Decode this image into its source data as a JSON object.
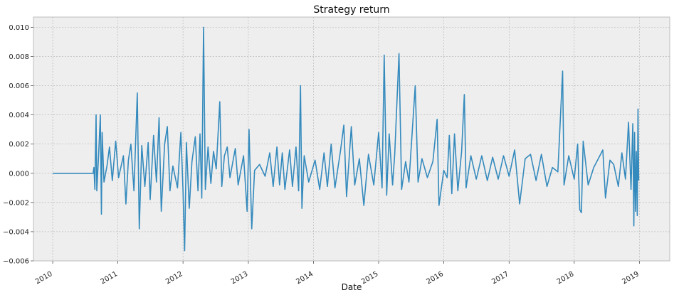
{
  "chart_data": {
    "type": "line",
    "title": "Strategy return",
    "xlabel": "Date",
    "ylabel": "",
    "xlim": [
      "2009-09-15",
      "2019-06-20"
    ],
    "ylim": [
      -0.006,
      0.0107
    ],
    "grid": true,
    "legend": "none",
    "x_ticks": [
      "2010",
      "2011",
      "2012",
      "2013",
      "2014",
      "2015",
      "2016",
      "2017",
      "2018",
      "2019"
    ],
    "y_ticks": [
      "0.010",
      "0.008",
      "0.006",
      "0.004",
      "0.002",
      "0.000",
      "−0.002",
      "−0.004",
      "−0.006"
    ],
    "y_tick_values": [
      0.01,
      0.008,
      0.006,
      0.004,
      0.002,
      0.0,
      -0.002,
      -0.004,
      -0.006
    ],
    "series": [
      {
        "color": "#348abd",
        "points": [
          [
            "2010-01-01",
            0.0
          ],
          [
            "2010-08-15",
            0.0
          ],
          [
            "2010-08-20",
            0.0004
          ],
          [
            "2010-08-25",
            -0.0011
          ],
          [
            "2010-09-01",
            0.004
          ],
          [
            "2010-09-05",
            -0.0012
          ],
          [
            "2010-09-15",
            0.0012
          ],
          [
            "2010-09-25",
            0.004
          ],
          [
            "2010-10-01",
            -0.0028
          ],
          [
            "2010-10-05",
            0.0028
          ],
          [
            "2010-10-15",
            -0.0006
          ],
          [
            "2010-11-01",
            0.0005
          ],
          [
            "2010-11-15",
            0.0018
          ],
          [
            "2010-12-01",
            -0.0005
          ],
          [
            "2010-12-20",
            0.0022
          ],
          [
            "2011-01-05",
            -0.0003
          ],
          [
            "2011-02-01",
            0.0012
          ],
          [
            "2011-02-15",
            -0.0021
          ],
          [
            "2011-03-01",
            0.0009
          ],
          [
            "2011-03-15",
            0.002
          ],
          [
            "2011-04-01",
            -0.0012
          ],
          [
            "2011-04-20",
            0.0055
          ],
          [
            "2011-05-01",
            -0.0038
          ],
          [
            "2011-05-15",
            0.0019
          ],
          [
            "2011-06-01",
            -0.0009
          ],
          [
            "2011-06-20",
            0.0021
          ],
          [
            "2011-07-01",
            -0.0018
          ],
          [
            "2011-07-20",
            0.0026
          ],
          [
            "2011-08-05",
            -0.0006
          ],
          [
            "2011-08-20",
            0.0038
          ],
          [
            "2011-09-01",
            -0.0026
          ],
          [
            "2011-09-20",
            0.002
          ],
          [
            "2011-10-05",
            0.0032
          ],
          [
            "2011-10-20",
            -0.0012
          ],
          [
            "2011-11-05",
            0.0005
          ],
          [
            "2011-12-01",
            -0.001
          ],
          [
            "2011-12-20",
            0.0028
          ],
          [
            "2012-01-01",
            -0.0011
          ],
          [
            "2012-01-10",
            -0.0053
          ],
          [
            "2012-01-20",
            0.0021
          ],
          [
            "2012-02-05",
            -0.0024
          ],
          [
            "2012-02-20",
            0.0008
          ],
          [
            "2012-03-10",
            0.0025
          ],
          [
            "2012-03-25",
            -0.0012
          ],
          [
            "2012-04-05",
            0.0027
          ],
          [
            "2012-04-15",
            -0.0017
          ],
          [
            "2012-04-25",
            0.01
          ],
          [
            "2012-05-05",
            -0.0011
          ],
          [
            "2012-05-20",
            0.0018
          ],
          [
            "2012-06-05",
            -0.0007
          ],
          [
            "2012-06-20",
            0.0015
          ],
          [
            "2012-07-05",
            0.0003
          ],
          [
            "2012-07-25",
            0.0049
          ],
          [
            "2012-08-05",
            -0.0009
          ],
          [
            "2012-08-20",
            0.0012
          ],
          [
            "2012-09-05",
            0.0018
          ],
          [
            "2012-09-20",
            -0.0003
          ],
          [
            "2012-10-20",
            0.0017
          ],
          [
            "2012-11-05",
            -0.0008
          ],
          [
            "2012-12-05",
            0.0012
          ],
          [
            "2012-12-25",
            -0.0026
          ],
          [
            "2013-01-05",
            0.003
          ],
          [
            "2013-01-20",
            -0.0038
          ],
          [
            "2013-02-05",
            0.0002
          ],
          [
            "2013-03-05",
            0.0006
          ],
          [
            "2013-04-05",
            -0.0002
          ],
          [
            "2013-05-01",
            0.0014
          ],
          [
            "2013-05-20",
            -0.0009
          ],
          [
            "2013-06-10",
            0.0018
          ],
          [
            "2013-06-25",
            -0.0008
          ],
          [
            "2013-07-10",
            0.0014
          ],
          [
            "2013-07-25",
            -0.0011
          ],
          [
            "2013-08-20",
            0.0016
          ],
          [
            "2013-09-05",
            -0.0009
          ],
          [
            "2013-09-25",
            0.0018
          ],
          [
            "2013-10-10",
            -0.0012
          ],
          [
            "2013-10-20",
            0.006
          ],
          [
            "2013-10-28",
            -0.0024
          ],
          [
            "2013-11-10",
            0.0012
          ],
          [
            "2013-12-05",
            -0.0006
          ],
          [
            "2014-01-10",
            0.0009
          ],
          [
            "2014-02-05",
            -0.0011
          ],
          [
            "2014-03-01",
            0.0014
          ],
          [
            "2014-03-20",
            -0.0009
          ],
          [
            "2014-04-10",
            0.002
          ],
          [
            "2014-05-01",
            -0.001
          ],
          [
            "2014-06-01",
            0.0015
          ],
          [
            "2014-06-20",
            0.0033
          ],
          [
            "2014-07-05",
            -0.0016
          ],
          [
            "2014-08-01",
            0.0032
          ],
          [
            "2014-08-20",
            -0.0008
          ],
          [
            "2014-09-15",
            0.001
          ],
          [
            "2014-10-10",
            -0.0022
          ],
          [
            "2014-11-05",
            0.0013
          ],
          [
            "2014-12-05",
            -0.0008
          ],
          [
            "2015-01-01",
            0.0028
          ],
          [
            "2015-01-20",
            -0.001
          ],
          [
            "2015-02-01",
            0.0081
          ],
          [
            "2015-02-15",
            -0.0015
          ],
          [
            "2015-03-01",
            0.0027
          ],
          [
            "2015-03-20",
            -0.0008
          ],
          [
            "2015-04-01",
            0.0013
          ],
          [
            "2015-04-25",
            0.0082
          ],
          [
            "2015-05-10",
            -0.0011
          ],
          [
            "2015-06-01",
            0.0008
          ],
          [
            "2015-06-20",
            -0.0006
          ],
          [
            "2015-07-25",
            0.006
          ],
          [
            "2015-08-10",
            -0.0006
          ],
          [
            "2015-09-01",
            0.001
          ],
          [
            "2015-10-01",
            -0.0003
          ],
          [
            "2015-11-01",
            0.0008
          ],
          [
            "2015-11-25",
            0.0037
          ],
          [
            "2015-12-05",
            -0.0022
          ],
          [
            "2016-01-01",
            0.0002
          ],
          [
            "2016-01-20",
            -0.0003
          ],
          [
            "2016-02-01",
            0.0026
          ],
          [
            "2016-02-15",
            -0.0014
          ],
          [
            "2016-03-01",
            0.0027
          ],
          [
            "2016-03-20",
            -0.0012
          ],
          [
            "2016-04-10",
            0.0015
          ],
          [
            "2016-04-25",
            0.0054
          ],
          [
            "2016-05-05",
            -0.001
          ],
          [
            "2016-06-01",
            0.0012
          ],
          [
            "2016-07-01",
            -0.0004
          ],
          [
            "2016-08-01",
            0.0012
          ],
          [
            "2016-09-01",
            -0.0005
          ],
          [
            "2016-10-01",
            0.0011
          ],
          [
            "2016-11-01",
            -0.0004
          ],
          [
            "2016-12-01",
            0.0012
          ],
          [
            "2017-01-01",
            -0.0002
          ],
          [
            "2017-02-01",
            0.0016
          ],
          [
            "2017-03-01",
            -0.0021
          ],
          [
            "2017-04-01",
            0.001
          ],
          [
            "2017-05-01",
            0.0013
          ],
          [
            "2017-06-01",
            -0.0005
          ],
          [
            "2017-07-01",
            0.0013
          ],
          [
            "2017-08-01",
            -0.0009
          ],
          [
            "2017-09-01",
            0.0004
          ],
          [
            "2017-10-01",
            0.0001
          ],
          [
            "2017-10-28",
            0.007
          ],
          [
            "2017-11-05",
            -0.0008
          ],
          [
            "2017-12-01",
            0.0012
          ],
          [
            "2018-01-01",
            -0.0004
          ],
          [
            "2018-01-20",
            0.002
          ],
          [
            "2018-02-01",
            -0.0025
          ],
          [
            "2018-02-10",
            -0.0027
          ],
          [
            "2018-02-20",
            0.0022
          ],
          [
            "2018-03-20",
            -0.0008
          ],
          [
            "2018-04-20",
            0.0004
          ],
          [
            "2018-05-20",
            0.0011
          ],
          [
            "2018-06-10",
            0.0016
          ],
          [
            "2018-06-25",
            -0.0017
          ],
          [
            "2018-07-20",
            0.0009
          ],
          [
            "2018-08-10",
            0.0006
          ],
          [
            "2018-09-05",
            -0.0009
          ],
          [
            "2018-09-25",
            0.0014
          ],
          [
            "2018-10-15",
            -0.0004
          ],
          [
            "2018-11-01",
            0.0035
          ],
          [
            "2018-11-15",
            -0.0011
          ],
          [
            "2018-11-25",
            0.0034
          ],
          [
            "2018-12-01",
            -0.0036
          ],
          [
            "2018-12-05",
            0.0028
          ],
          [
            "2018-12-10",
            -0.0026
          ],
          [
            "2018-12-15",
            0.0015
          ],
          [
            "2018-12-20",
            -0.0029
          ],
          [
            "2018-12-24",
            0.0044
          ],
          [
            "2018-12-28",
            -0.0005
          ]
        ]
      }
    ]
  }
}
